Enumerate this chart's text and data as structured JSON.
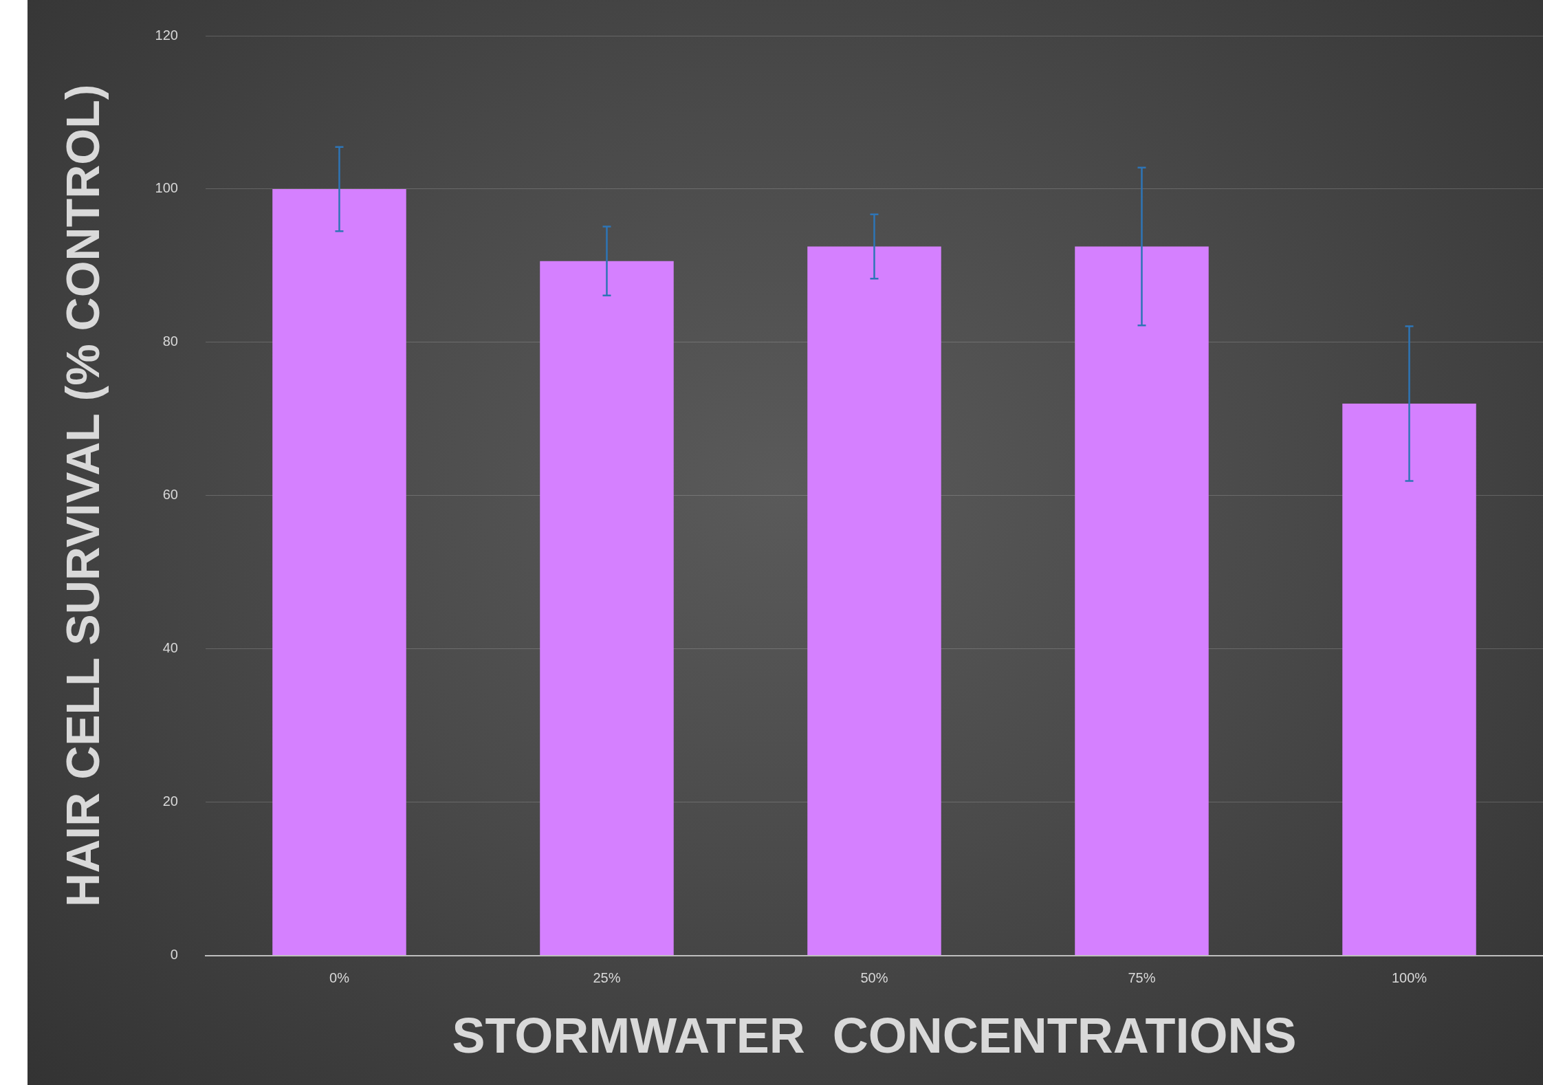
{
  "chart_data": {
    "type": "bar",
    "xlabel": "STORMWATER  CONCENTRATIONS",
    "ylabel": "HAIR CELL SURVIVAL (% CONTROL)",
    "categories": [
      "0%",
      "25%",
      "50%",
      "75%",
      "100%"
    ],
    "values": [
      100,
      90.6,
      92.5,
      92.5,
      72.0
    ],
    "errors": [
      5.5,
      4.5,
      4.2,
      10.3,
      10.1
    ],
    "color": "#d580ff",
    "ylim": [
      0,
      120
    ],
    "yticks": [
      0,
      20,
      40,
      60,
      80,
      100,
      120
    ],
    "grid": "y"
  }
}
